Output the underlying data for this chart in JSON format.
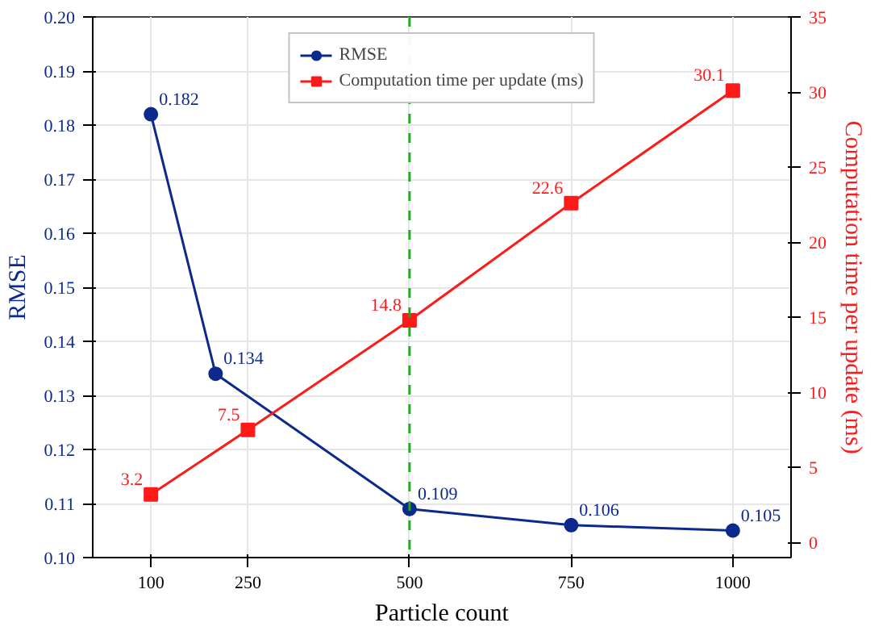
{
  "chart_data": {
    "type": "line",
    "xlabel": "Particle count",
    "ylabel": "RMSE",
    "y2label": "Computation time per update (ms)",
    "xlim": [
      10,
      1090
    ],
    "xticks": [
      100,
      250,
      500,
      750,
      1000
    ],
    "ylim": [
      0.1,
      0.2
    ],
    "yticks": [
      {
        "value": 0.1,
        "label": "0.10"
      },
      0.11,
      0.12,
      0.13,
      0.14,
      0.15,
      0.16,
      0.17,
      0.18,
      0.19,
      {
        "value": 0.2,
        "label": "0.20"
      }
    ],
    "y2lim": [
      -1,
      35
    ],
    "y2ticks": [
      0,
      5,
      10,
      15,
      20,
      25,
      30,
      35
    ],
    "series": [
      {
        "name": "RMSE",
        "color": "#0b2a8c",
        "marker": "circle",
        "x": [
          100,
          200,
          500,
          750,
          1000
        ],
        "values": [
          0.182,
          0.134,
          0.109,
          0.106,
          0.105
        ],
        "value_labels": [
          "0.182",
          "0.134",
          "0.109",
          "0.106",
          "0.105"
        ]
      },
      {
        "name": "Computation time per update (ms)",
        "color": "#ff1a1a",
        "marker": "square",
        "axis": "y2",
        "x": [
          100,
          250,
          500,
          750,
          1000
        ],
        "values": [
          3.2,
          7.5,
          14.8,
          22.6,
          30.1
        ],
        "value_labels": [
          "3.2",
          "7.5",
          "14.8",
          "22.6",
          "30.1"
        ]
      }
    ],
    "ref_lines": [
      {
        "axis": "x",
        "value": 500,
        "color": "#22aa22",
        "line_style": "dashed"
      }
    ],
    "grid": true,
    "legend": "top",
    "line_style": "solid"
  }
}
